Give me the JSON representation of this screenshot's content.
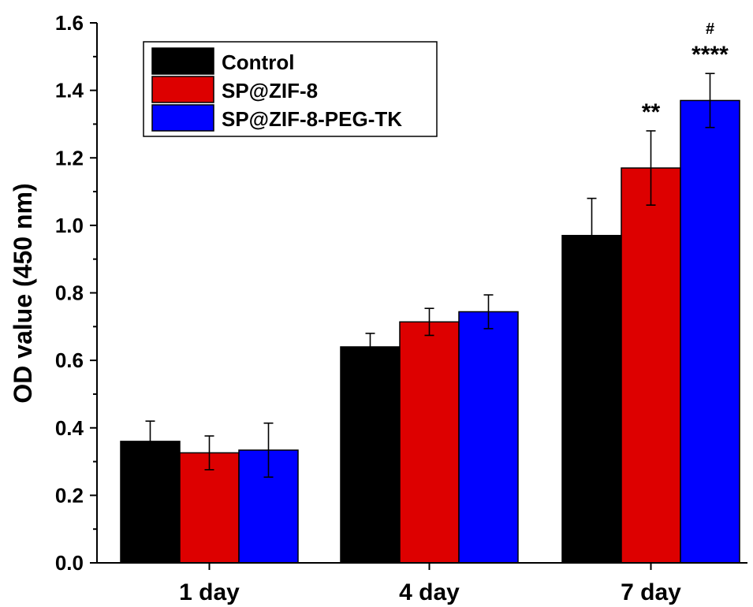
{
  "chart_data": {
    "type": "bar",
    "title": "",
    "xlabel": "",
    "ylabel": "OD value (450 nm)",
    "ylim": [
      0,
      1.6
    ],
    "yticks": [
      "0.0",
      "0.2",
      "0.4",
      "0.6",
      "0.8",
      "1.0",
      "1.2",
      "1.4",
      "1.6"
    ],
    "categories": [
      "1 day",
      "4 day",
      "7 day"
    ],
    "legend_position": "top-left",
    "series": [
      {
        "name": "Control",
        "color": "#000000",
        "values": [
          0.36,
          0.64,
          0.97
        ],
        "errors": [
          0.06,
          0.04,
          0.11
        ]
      },
      {
        "name": "SP@ZIF-8",
        "color": "#dd0000",
        "values": [
          0.326,
          0.714,
          1.17
        ],
        "errors": [
          0.05,
          0.04,
          0.11
        ]
      },
      {
        "name": "SP@ZIF-8-PEG-TK",
        "color": "#0000ff",
        "values": [
          0.334,
          0.744,
          1.37
        ],
        "errors": [
          0.08,
          0.05,
          0.08
        ]
      }
    ],
    "annotations": [
      {
        "category": "7 day",
        "series": "SP@ZIF-8",
        "text": "**"
      },
      {
        "category": "7 day",
        "series": "SP@ZIF-8-PEG-TK",
        "text": "****"
      },
      {
        "category": "7 day",
        "series": "SP@ZIF-8-PEG-TK",
        "text": "#"
      }
    ]
  }
}
